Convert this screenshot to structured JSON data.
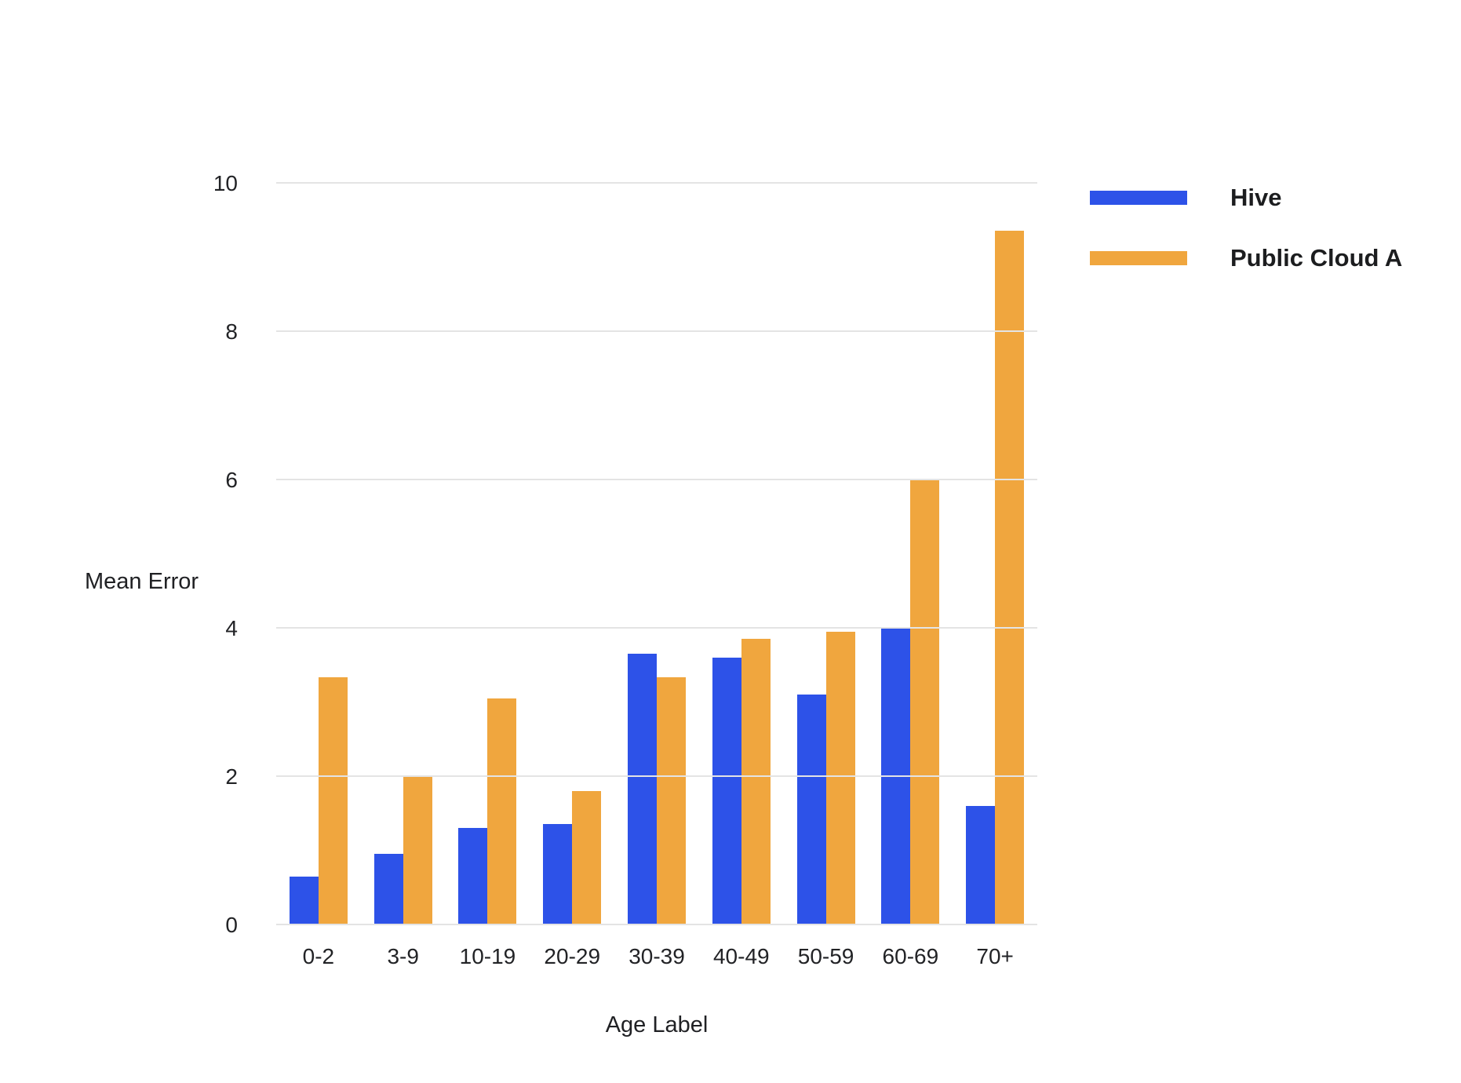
{
  "chart_data": {
    "type": "bar",
    "title": "",
    "xlabel": "Age Label",
    "ylabel": "Mean Error",
    "categories": [
      "0-2",
      "3-9",
      "10-19",
      "20-29",
      "30-39",
      "40-49",
      "50-59",
      "60-69",
      "70+"
    ],
    "series": [
      {
        "name": "Hive",
        "color": "#2d52e8",
        "values": [
          0.65,
          0.95,
          1.3,
          1.35,
          3.65,
          3.6,
          3.1,
          4.0,
          1.6
        ]
      },
      {
        "name": "Public Cloud A",
        "color": "#f0a63e",
        "values": [
          3.33,
          2.0,
          3.05,
          1.8,
          3.33,
          3.85,
          3.95,
          6.0,
          9.35
        ]
      }
    ],
    "ylim": [
      0,
      10
    ],
    "yticks": [
      "0",
      "2",
      "4",
      "6",
      "8",
      "10"
    ],
    "grid": true,
    "legend_position": "right",
    "colors": {
      "hive": "#2d52e8",
      "public_cloud_a": "#f0a63e",
      "gridline": "#e4e4e4",
      "text": "#202124",
      "background": "#ffffff"
    }
  }
}
